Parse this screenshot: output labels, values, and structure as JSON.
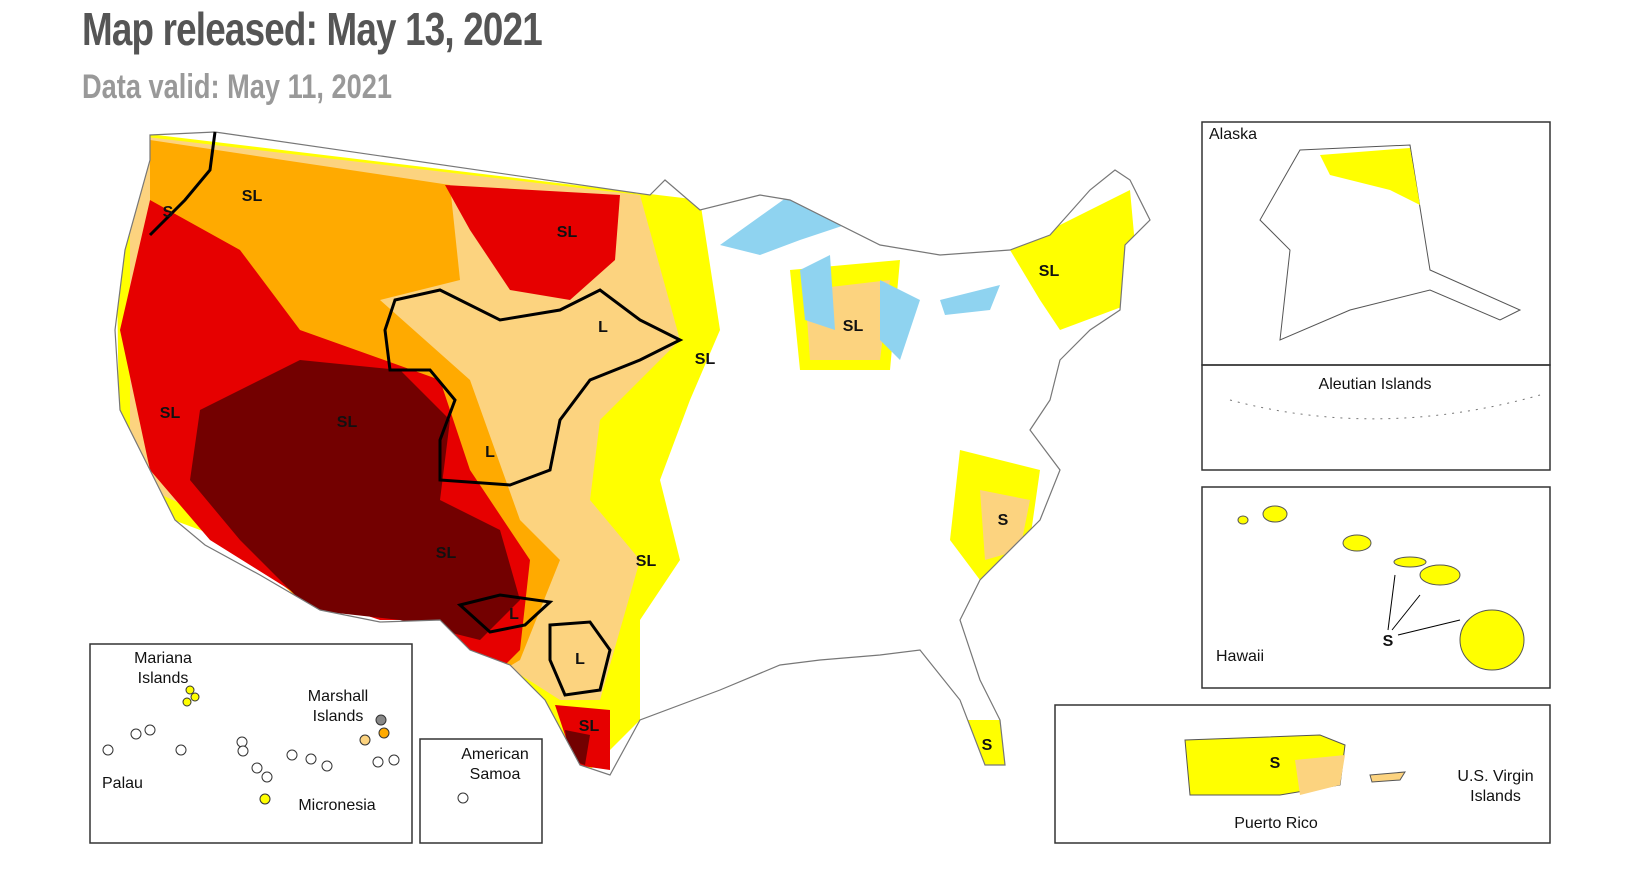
{
  "header": {
    "title": "Map released: May 13, 2021",
    "subtitle": "Data valid: May 11, 2021"
  },
  "conus_labels": [
    "S",
    "SL",
    "SL",
    "L",
    "SL",
    "SL",
    "SL",
    "SL",
    "SL",
    "L",
    "S",
    "SL",
    "SL",
    "L",
    "L",
    "SL",
    "S"
  ],
  "insets": {
    "alaska": "Alaska",
    "aleutian": "Aleutian Islands",
    "hawaii": "Hawaii",
    "hawaii_label": "S",
    "puerto_rico": "Puerto Rico",
    "puerto_rico_label": "S",
    "virgin_islands": "U.S. Virgin Islands",
    "mariana": "Mariana Islands",
    "marshall": "Marshall Islands",
    "palau": "Palau",
    "micronesia": "Micronesia",
    "american_samoa": "American Samoa"
  }
}
